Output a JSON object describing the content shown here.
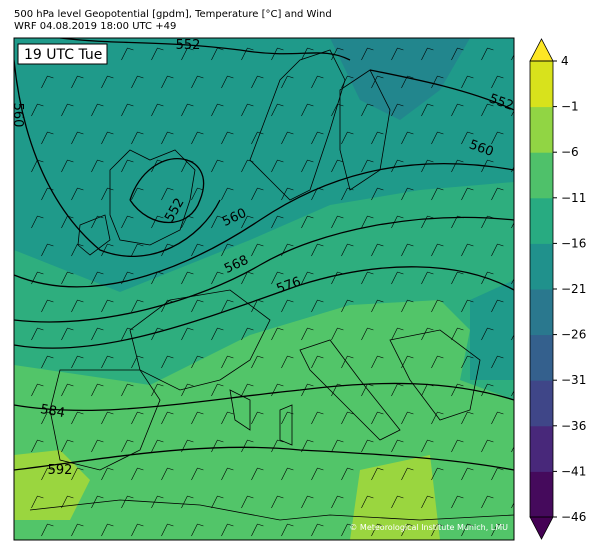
{
  "header": {
    "title": "500 hPa level Geopotential [gpdm], Temperature [°C] and Wind",
    "subtitle": "WRF 04.08.2019 18:00 UTC +49"
  },
  "map": {
    "time_label": "19 UTC Tue",
    "contour_labels": [
      "552",
      "552",
      "560",
      "552",
      "560",
      "568",
      "576",
      "584",
      "592",
      "560"
    ],
    "copyright": "© Meteorological Institute Munich, LMU"
  },
  "colorbar": {
    "range": [
      -46,
      4
    ],
    "ticks": [
      4,
      {
        "value": -1,
        "label": "−1"
      },
      {
        "value": -6,
        "label": "−6"
      },
      {
        "value": -11,
        "label": "−11"
      },
      {
        "value": -16,
        "label": "−16"
      },
      {
        "value": -21,
        "label": "−21"
      },
      {
        "value": -26,
        "label": "−26"
      },
      {
        "value": -31,
        "label": "−31"
      },
      {
        "value": -36,
        "label": "−36"
      },
      {
        "value": -41,
        "label": "−41"
      },
      {
        "value": -46,
        "label": "−46"
      }
    ],
    "colors": [
      "#450a5c",
      "#48287a",
      "#3f4688",
      "#34608d",
      "#2a788e",
      "#20918c",
      "#28ab81",
      "#4fc16a",
      "#91d544",
      "#d8e21c"
    ],
    "extend_colors": {
      "under": "#440154",
      "over": "#fde725"
    }
  }
}
